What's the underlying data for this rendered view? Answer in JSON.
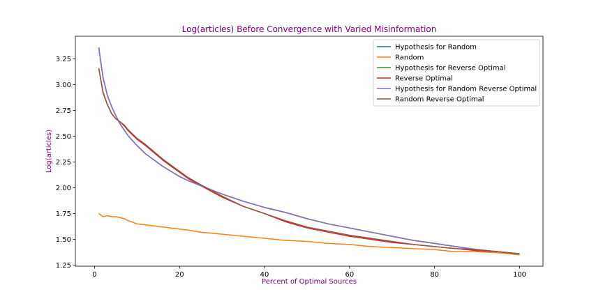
{
  "chart_data": {
    "type": "line",
    "title": "Log(articles) Before Convergence with Varied Misinformation",
    "xlabel": "Percent of Optimal Sources",
    "ylabel": "Log(articles)",
    "xlim": [
      -4.5,
      105.5
    ],
    "ylim": [
      1.24,
      3.47
    ],
    "x_ticks": [
      0,
      20,
      40,
      60,
      80,
      100
    ],
    "y_ticks": [
      1.25,
      1.5,
      1.75,
      2.0,
      2.25,
      2.5,
      2.75,
      3.0,
      3.25
    ],
    "y_tick_labels": [
      "1.25",
      "1.50",
      "1.75",
      "2.00",
      "2.25",
      "2.50",
      "2.75",
      "3.00",
      "3.25"
    ],
    "legend_position": "upper right",
    "grid": false,
    "x": [
      1,
      2,
      3,
      4,
      5,
      6,
      7,
      8,
      10,
      12,
      14,
      16,
      18,
      20,
      22,
      25,
      30,
      35,
      40,
      45,
      50,
      55,
      60,
      65,
      70,
      75,
      80,
      85,
      90,
      95,
      100
    ],
    "series": [
      {
        "name": "Hypothesis for Random",
        "color": "#1f77b4",
        "values": [
          3.36,
          3.07,
          2.9,
          2.79,
          2.7,
          2.62,
          2.56,
          2.5,
          2.41,
          2.33,
          2.27,
          2.21,
          2.16,
          2.11,
          2.07,
          2.02,
          1.94,
          1.87,
          1.81,
          1.76,
          1.7,
          1.65,
          1.61,
          1.57,
          1.53,
          1.49,
          1.46,
          1.43,
          1.4,
          1.38,
          1.36
        ]
      },
      {
        "name": "Random",
        "color": "#ff7f0e",
        "values": [
          1.75,
          1.72,
          1.73,
          1.72,
          1.72,
          1.71,
          1.7,
          1.68,
          1.65,
          1.64,
          1.63,
          1.62,
          1.61,
          1.6,
          1.59,
          1.57,
          1.55,
          1.53,
          1.51,
          1.49,
          1.48,
          1.46,
          1.45,
          1.43,
          1.42,
          1.41,
          1.4,
          1.38,
          1.38,
          1.37,
          1.35
        ]
      },
      {
        "name": "Hypothesis for Reverse Optimal",
        "color": "#2ca02c",
        "values": [
          3.36,
          3.07,
          2.9,
          2.79,
          2.7,
          2.62,
          2.56,
          2.5,
          2.41,
          2.33,
          2.27,
          2.21,
          2.16,
          2.11,
          2.07,
          2.02,
          1.94,
          1.87,
          1.81,
          1.76,
          1.7,
          1.65,
          1.61,
          1.57,
          1.53,
          1.49,
          1.46,
          1.43,
          1.4,
          1.38,
          1.36
        ]
      },
      {
        "name": "Reverse Optimal",
        "color": "#d62728",
        "values": [
          3.16,
          2.92,
          2.81,
          2.72,
          2.67,
          2.64,
          2.6,
          2.55,
          2.47,
          2.41,
          2.34,
          2.27,
          2.21,
          2.15,
          2.09,
          2.02,
          1.91,
          1.82,
          1.75,
          1.67,
          1.61,
          1.57,
          1.53,
          1.5,
          1.47,
          1.45,
          1.43,
          1.41,
          1.39,
          1.38,
          1.36
        ]
      },
      {
        "name": "Hypothesis for Random Reverse Optimal",
        "color": "#9467bd",
        "values": [
          3.36,
          3.07,
          2.9,
          2.79,
          2.7,
          2.62,
          2.56,
          2.5,
          2.41,
          2.33,
          2.27,
          2.21,
          2.16,
          2.11,
          2.07,
          2.02,
          1.94,
          1.87,
          1.81,
          1.76,
          1.7,
          1.65,
          1.61,
          1.57,
          1.53,
          1.49,
          1.46,
          1.43,
          1.4,
          1.38,
          1.36
        ]
      },
      {
        "name": "Random Reverse Optimal",
        "color": "#8c564b",
        "values": [
          3.16,
          2.93,
          2.81,
          2.72,
          2.67,
          2.64,
          2.61,
          2.56,
          2.48,
          2.42,
          2.35,
          2.28,
          2.22,
          2.16,
          2.1,
          2.03,
          1.92,
          1.82,
          1.75,
          1.68,
          1.62,
          1.58,
          1.54,
          1.51,
          1.48,
          1.45,
          1.43,
          1.41,
          1.4,
          1.38,
          1.36
        ]
      }
    ]
  }
}
